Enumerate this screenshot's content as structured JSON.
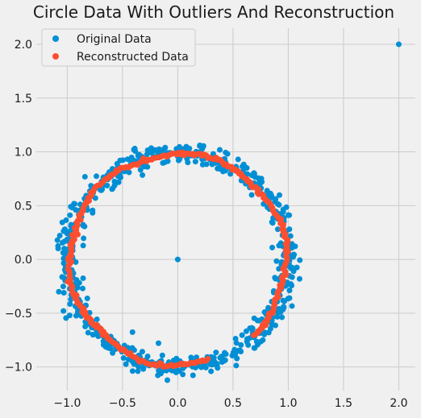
{
  "chart_data": {
    "type": "scatter",
    "title": "Circle Data With Outliers And Reconstruction",
    "xlabel": "",
    "ylabel": "",
    "xlim": [
      -1.28,
      2.15
    ],
    "ylim": [
      -1.22,
      2.15
    ],
    "xticks": [
      -1.0,
      -0.5,
      0.0,
      0.5,
      1.0,
      1.5,
      2.0
    ],
    "xtick_labels": [
      "−1.0",
      "−0.5",
      "0.0",
      "0.5",
      "1.0",
      "1.5",
      "2.0"
    ],
    "yticks": [
      -1.0,
      -0.5,
      0.0,
      0.5,
      1.0,
      1.5,
      2.0
    ],
    "ytick_labels": [
      "−1.0",
      "−0.5",
      "0.0",
      "0.5",
      "1.0",
      "1.5",
      "2.0"
    ],
    "grid": true,
    "legend_position": "top-left",
    "series": [
      {
        "name": "Original Data",
        "color": "#008fd5",
        "distribution": "noisy unit circle, radius 1.0, noise sd 0.05, 700 points",
        "outliers": [
          [
            0.0,
            0.0
          ],
          [
            2.0,
            2.0
          ]
        ]
      },
      {
        "name": "Reconstructed Data",
        "color": "#fc4f30",
        "distribution": "smooth ring, radius approx 0.98, angle range -0.8 to 5.0 rad"
      }
    ]
  }
}
